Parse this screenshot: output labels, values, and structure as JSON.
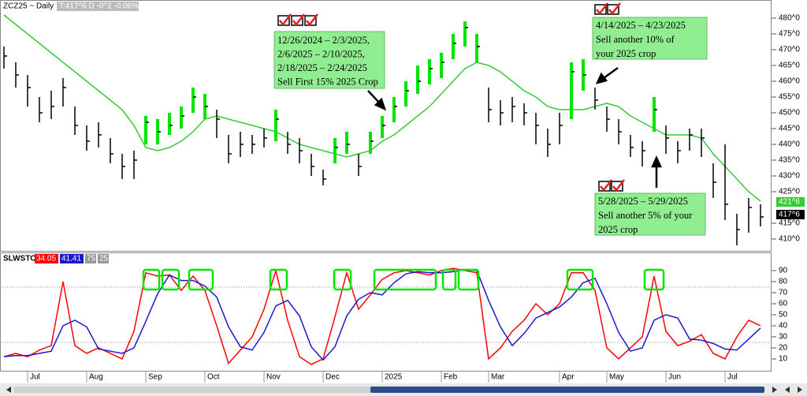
{
  "chart_data": [
    {
      "type": "ohlc",
      "title": "ZCZ25 ~ Daily",
      "subtitle": "T:417^6 D -0^2 -0.06%",
      "high": [
        471,
        466,
        462,
        455,
        457,
        461,
        452,
        446,
        447,
        442,
        437,
        438,
        449,
        448,
        450,
        452,
        458,
        456,
        451,
        443,
        444,
        443,
        445,
        451,
        444,
        442,
        437,
        432,
        442,
        444,
        437,
        444,
        449,
        455,
        460,
        465,
        467,
        469,
        475,
        479,
        475,
        458,
        454,
        455,
        453,
        450,
        445,
        450,
        466,
        467,
        458,
        452,
        448,
        443,
        441,
        455,
        446,
        441,
        445,
        445,
        434,
        440,
        418,
        423,
        421
      ],
      "low": [
        464,
        458,
        452,
        447,
        448,
        452,
        443,
        438,
        439,
        434,
        429,
        429,
        440,
        440,
        443,
        445,
        450,
        448,
        442,
        434,
        436,
        437,
        439,
        441,
        437,
        434,
        430,
        427,
        434,
        437,
        430,
        437,
        442,
        447,
        452,
        456,
        459,
        461,
        467,
        471,
        466,
        447,
        446,
        447,
        446,
        440,
        436,
        440,
        448,
        457,
        451,
        444,
        440,
        436,
        433,
        444,
        437,
        434,
        438,
        436,
        423,
        416,
        408,
        412,
        414
      ],
      "close": [
        468,
        462,
        458,
        450,
        452,
        458,
        446,
        441,
        443,
        437,
        433,
        435,
        447,
        444,
        446,
        449,
        455,
        452,
        448,
        437,
        440,
        440,
        442,
        448,
        440,
        438,
        433,
        429,
        439,
        440,
        433,
        441,
        446,
        452,
        457,
        460,
        464,
        466,
        472,
        477,
        471,
        451,
        450,
        452,
        450,
        446,
        440,
        446,
        463,
        462,
        454,
        448,
        444,
        439,
        438,
        451,
        442,
        438,
        443,
        442,
        428,
        421,
        413,
        420,
        417
      ],
      "highlighted": [
        12,
        13,
        14,
        15,
        16,
        17,
        23,
        28,
        29,
        31,
        32,
        33,
        34,
        35,
        36,
        37,
        38,
        39,
        40,
        48,
        49,
        55
      ],
      "highlight_color": "#00e600",
      "ma": {
        "color": "#33cc33",
        "values": [
          481,
          478,
          475,
          472,
          469,
          466,
          463,
          460,
          457,
          454,
          451,
          446,
          439,
          438,
          439,
          441,
          444,
          448,
          449,
          448,
          447,
          446,
          445,
          444,
          442,
          440,
          439,
          438,
          437,
          436,
          437,
          438,
          441,
          443,
          446,
          449,
          452,
          456,
          460,
          464,
          466,
          465,
          463,
          460,
          457,
          455,
          452,
          451,
          451,
          451,
          452,
          453,
          452,
          449,
          447,
          445,
          443,
          443,
          443,
          442,
          437,
          433,
          429,
          425,
          422
        ]
      },
      "ylim": [
        407,
        484.5
      ],
      "yticks": [
        {
          "value": 480,
          "label": "480^0"
        },
        {
          "value": 475,
          "label": "475^0"
        },
        {
          "value": 470,
          "label": "470^0"
        },
        {
          "value": 465,
          "label": "465^0"
        },
        {
          "value": 460,
          "label": "460^0"
        },
        {
          "value": 455,
          "label": "455^0"
        },
        {
          "value": 450,
          "label": "450^0"
        },
        {
          "value": 445,
          "label": "445^0"
        },
        {
          "value": 440,
          "label": "440^0"
        },
        {
          "value": 435,
          "label": "435^0"
        },
        {
          "value": 430,
          "label": "430^0"
        },
        {
          "value": 425,
          "label": "425^0"
        },
        {
          "value": 415,
          "label": "415^0"
        },
        {
          "value": 410,
          "label": "410^0"
        }
      ],
      "last_labels": [
        {
          "value": 421.75,
          "label": "421^6",
          "color": "#33cc33"
        },
        {
          "value": 417.75,
          "label": "417^6",
          "color": "#000000"
        }
      ],
      "annotations": [
        {
          "lines": [
            "12/26/2024 – 2/3/2025,",
            "2/6/2025 – 2/10/2025,",
            "2/18/2025 – 2/24/2025",
            "Sell First 15% 2025 Crop"
          ]
        },
        {
          "lines": [
            "4/14/2025 – 4/23/2025",
            "Sell another 10% of",
            "your 2025 crop"
          ]
        },
        {
          "lines": [
            "5/28/2025 – 5/29/2025",
            "Sell another 5% of your",
            "2025 crop"
          ]
        }
      ]
    },
    {
      "type": "line",
      "title": "SLWSTO",
      "categories": [
        null,
        null,
        "Jul",
        null,
        null,
        null,
        null,
        "Aug",
        null,
        null,
        null,
        null,
        "Sep",
        null,
        null,
        null,
        null,
        "Oct",
        null,
        null,
        null,
        null,
        "Nov",
        null,
        null,
        null,
        null,
        "Dec",
        null,
        null,
        null,
        null,
        "2025",
        null,
        null,
        null,
        null,
        "Feb",
        null,
        null,
        null,
        "Mar",
        null,
        null,
        null,
        null,
        null,
        "Apr",
        null,
        null,
        null,
        "May",
        null,
        null,
        null,
        null,
        "Jun",
        null,
        null,
        null,
        null,
        "Jul",
        null,
        null,
        null
      ],
      "series": [
        {
          "name": "34.05",
          "color": "#ff0000",
          "values": [
            12,
            15,
            12,
            18,
            22,
            80,
            22,
            15,
            20,
            15,
            10,
            35,
            88,
            85,
            86,
            72,
            85,
            72,
            40,
            6,
            18,
            30,
            55,
            90,
            45,
            12,
            5,
            10,
            48,
            88,
            55,
            68,
            82,
            88,
            90,
            88,
            86,
            90,
            92,
            90,
            88,
            10,
            20,
            35,
            45,
            60,
            50,
            60,
            88,
            88,
            72,
            20,
            10,
            20,
            30,
            85,
            35,
            22,
            26,
            32,
            15,
            10,
            30,
            45,
            40
          ]
        },
        {
          "name": "41.41",
          "color": "#1a1acc",
          "values": [
            12,
            13,
            13,
            15,
            17,
            40,
            45,
            39,
            19,
            17,
            15,
            20,
            44,
            69,
            86,
            81,
            81,
            76,
            66,
            39,
            21,
            18,
            34,
            58,
            63,
            49,
            21,
            9,
            21,
            49,
            64,
            70,
            68,
            79,
            87,
            89,
            88,
            88,
            89,
            91,
            90,
            63,
            39,
            22,
            33,
            47,
            52,
            57,
            66,
            79,
            83,
            60,
            34,
            17,
            20,
            45,
            50,
            47,
            28,
            27,
            24,
            19,
            18,
            28,
            38
          ]
        }
      ],
      "levels": [
        75,
        25
      ],
      "ylim": [
        -4.3,
        105
      ],
      "yticks": [
        90,
        80,
        70,
        60,
        50,
        40,
        30,
        20,
        10
      ]
    }
  ]
}
